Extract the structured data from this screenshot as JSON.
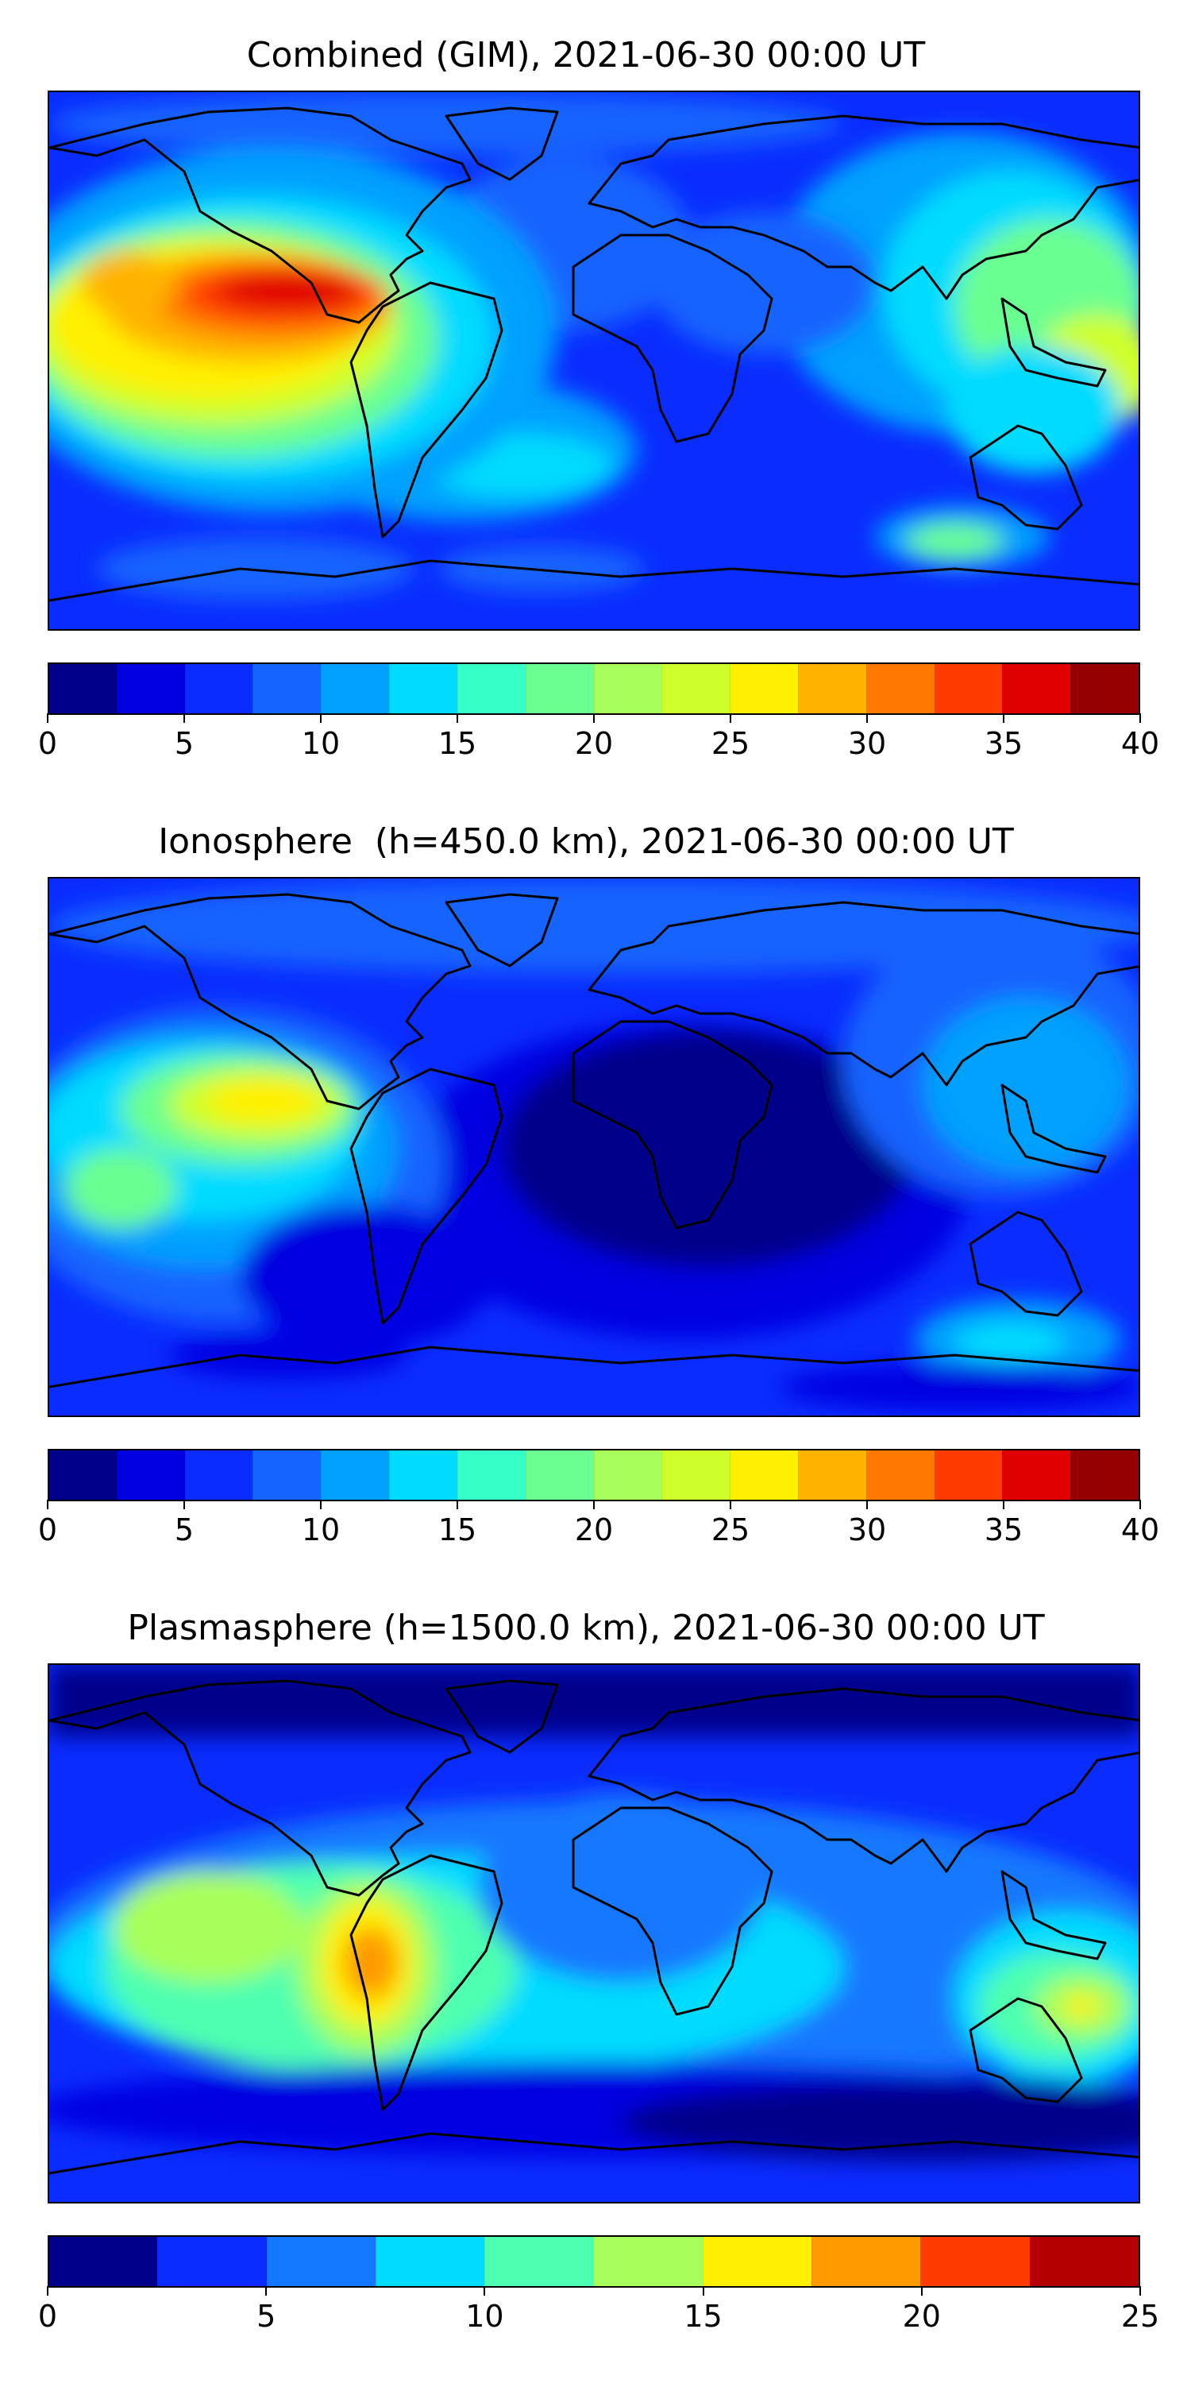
{
  "panels": [
    {
      "title": "Combined (GIM), 2021-06-30 00:00 UT",
      "colorbar": {
        "min": 0,
        "max": 40,
        "step": 2.5,
        "tick_labels": [
          "0",
          "5",
          "10",
          "15",
          "20",
          "25",
          "30",
          "35",
          "40"
        ],
        "colors": [
          "#00008a",
          "#0000e0",
          "#0a2cff",
          "#1464ff",
          "#00a0ff",
          "#00dcff",
          "#36ffc8",
          "#6bff91",
          "#a8ff5a",
          "#cfff2a",
          "#fff000",
          "#ffb300",
          "#ff7800",
          "#ff3c00",
          "#e00000",
          "#960000"
        ]
      }
    },
    {
      "title": "Ionosphere  (h=450.0 km), 2021-06-30 00:00 UT",
      "colorbar": {
        "min": 0,
        "max": 40,
        "step": 2.5,
        "tick_labels": [
          "0",
          "5",
          "10",
          "15",
          "20",
          "25",
          "30",
          "35",
          "40"
        ],
        "colors": [
          "#00008a",
          "#0000e0",
          "#0a2cff",
          "#1464ff",
          "#00a0ff",
          "#00dcff",
          "#36ffc8",
          "#6bff91",
          "#a8ff5a",
          "#cfff2a",
          "#fff000",
          "#ffb300",
          "#ff7800",
          "#ff3c00",
          "#e00000",
          "#960000"
        ]
      }
    },
    {
      "title": "Plasmasphere (h=1500.0 km), 2021-06-30 00:00 UT",
      "colorbar": {
        "min": 0,
        "max": 25,
        "step": 2.5,
        "tick_labels": [
          "0",
          "5",
          "10",
          "15",
          "20",
          "25"
        ],
        "colors": [
          "#00008a",
          "#0a2cff",
          "#1478ff",
          "#00dcff",
          "#4dffb0",
          "#a8ff5a",
          "#fff000",
          "#ff9a00",
          "#ff3c00",
          "#b40000"
        ]
      }
    }
  ]
}
